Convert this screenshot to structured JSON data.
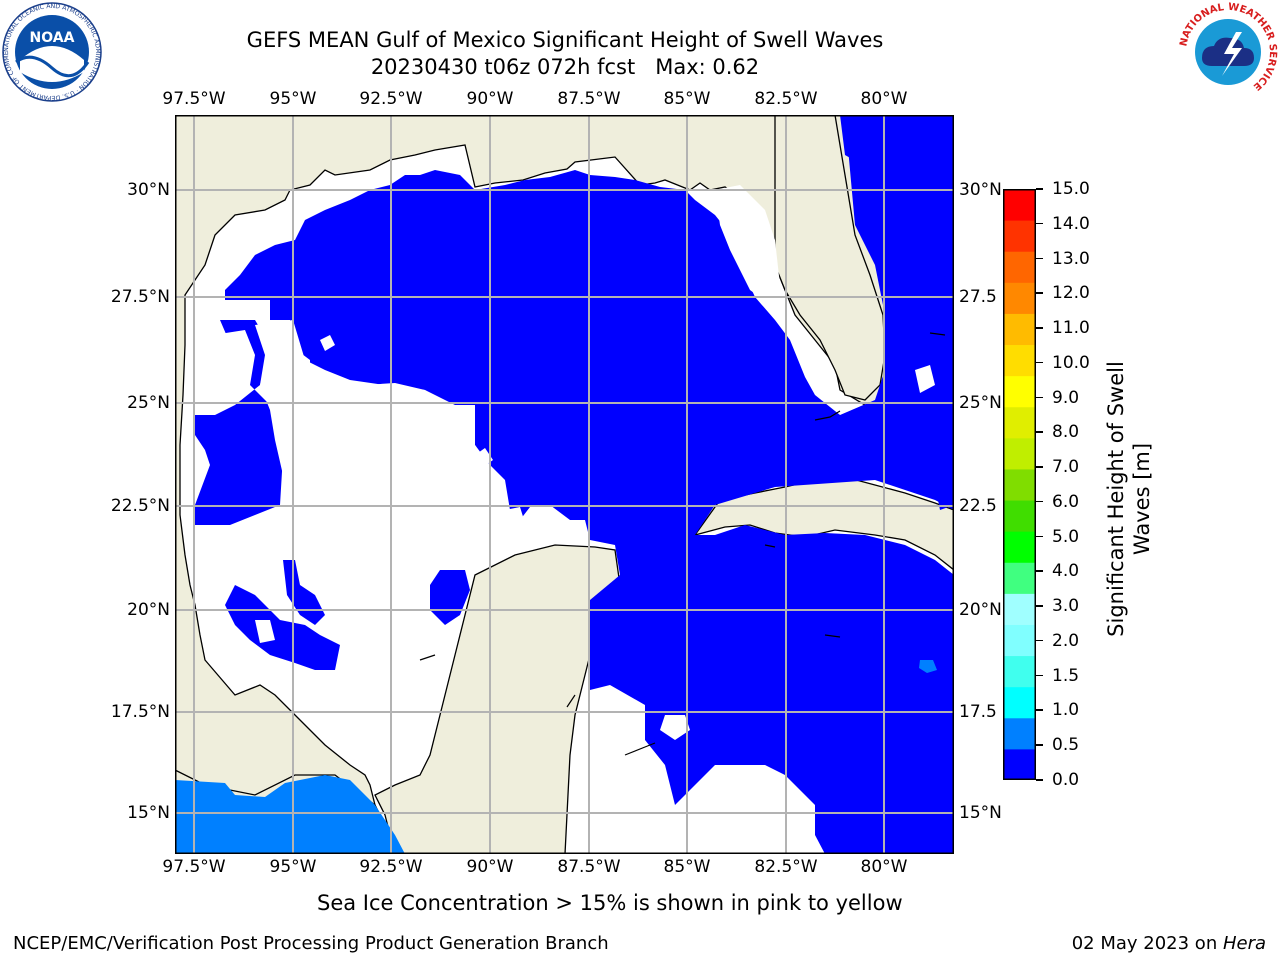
{
  "title": {
    "line1": "GEFS MEAN Gulf of Mexico Significant Height of Swell Waves",
    "line2": "20230430 t06z 072h fcst   Max: 0.62"
  },
  "map": {
    "lon_labels": [
      "97.5°W",
      "95°W",
      "92.5°W",
      "90°W",
      "87.5°W",
      "85°W",
      "82.5°W",
      "80°W"
    ],
    "lat_labels_left": [
      "30°N",
      "27.5°N",
      "25°N",
      "22.5°N",
      "20°N",
      "17.5°N",
      "15°N"
    ],
    "lat_labels_right": [
      "30°N",
      "27.5",
      "25°N",
      "22.5",
      "20°N",
      "17.5",
      "15°N"
    ],
    "colors": {
      "land": "#efeedc",
      "swell_low": "#0000ff",
      "swell_mid": "#0080ff",
      "grid": "#b3b3b3"
    }
  },
  "colorbar": {
    "tick_labels": [
      "0.0",
      "0.5",
      "1.0",
      "1.5",
      "2.0",
      "3.0",
      "4.0",
      "5.0",
      "6.0",
      "7.0",
      "8.0",
      "9.0",
      "10.0",
      "11.0",
      "12.0",
      "13.0",
      "14.0",
      "15.0"
    ],
    "colors": [
      "#0000ff",
      "#0080ff",
      "#00ffff",
      "#40ffee",
      "#80ffff",
      "#a0ffff",
      "#40ff80",
      "#00ff00",
      "#40dd00",
      "#80dd00",
      "#c0ee00",
      "#e0ee00",
      "#ffff00",
      "#ffdd00",
      "#ffbb00",
      "#ff8800",
      "#ff6600",
      "#ff3300",
      "#ff0000"
    ],
    "label_line1": "Significant Height of Swell",
    "label_line2": "Waves [m]"
  },
  "note": "Sea Ice Concentration > 15% is shown in pink to yellow",
  "footer": {
    "left": "NCEP/EMC/Verification Post Processing Product Generation Branch",
    "date": "02 May 2023 on ",
    "host": "Hera"
  },
  "logos": {
    "noaa_text": "NOAA",
    "noaa_ring": "NATIONAL OCEANIC AND ATMOSPHERIC ADMINISTRATION · U.S. DEPARTMENT OF COMMERCE",
    "nws_ring": "NATIONAL WEATHER SERVICE"
  }
}
